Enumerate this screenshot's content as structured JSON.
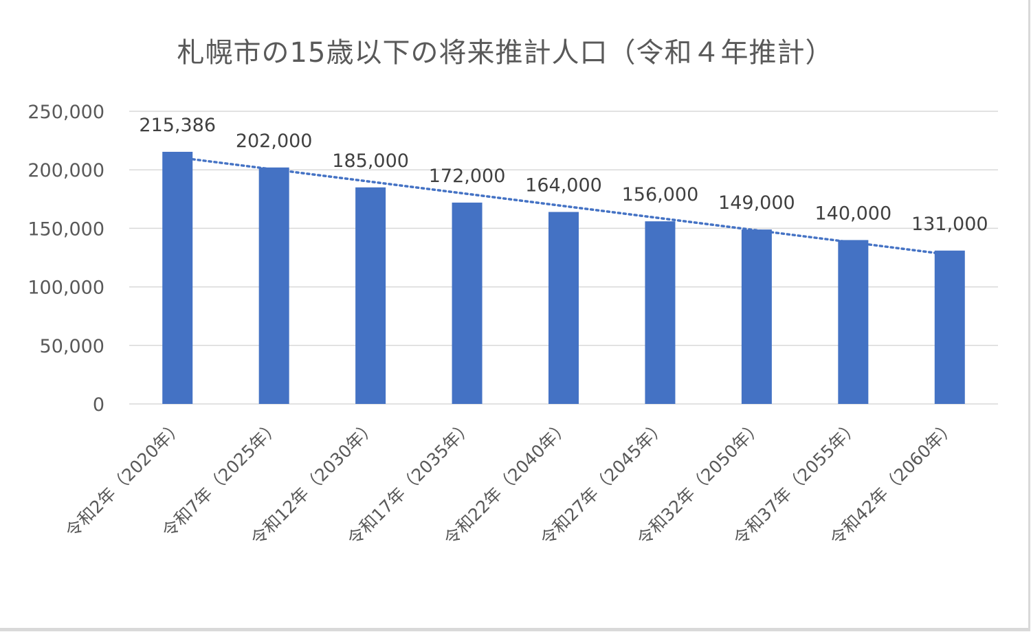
{
  "chart_data": {
    "type": "bar",
    "title": "札幌市の15歳以下の将来推計人口（令和４年推計）",
    "xlabel": "",
    "ylabel": "",
    "ylim": [
      0,
      250000
    ],
    "yticks": [
      0,
      50000,
      100000,
      150000,
      200000,
      250000
    ],
    "ytick_labels": [
      "0",
      "50,000",
      "100,000",
      "150,000",
      "200,000",
      "250,000"
    ],
    "grid": true,
    "legend": null,
    "categories": [
      "令和2年（2020年）",
      "令和7年（2025年）",
      "令和12年（2030年）",
      "令和17年（2035年）",
      "令和22年（2040年）",
      "令和27年（2045年）",
      "令和32年（2050年）",
      "令和37年（2055年）",
      "令和42年（2060年）"
    ],
    "values": [
      215386,
      202000,
      185000,
      172000,
      164000,
      156000,
      149000,
      140000,
      131000
    ],
    "data_labels": [
      "215,386",
      "202,000",
      "185,000",
      "172,000",
      "164,000",
      "156,000",
      "149,000",
      "140,000",
      "131,000"
    ],
    "trendline": {
      "type": "linear",
      "style": "dotted"
    },
    "colors": {
      "bar": "#4472C4",
      "trendline": "#4472C4",
      "grid": "#d9d9d9",
      "text": "#595959"
    }
  }
}
